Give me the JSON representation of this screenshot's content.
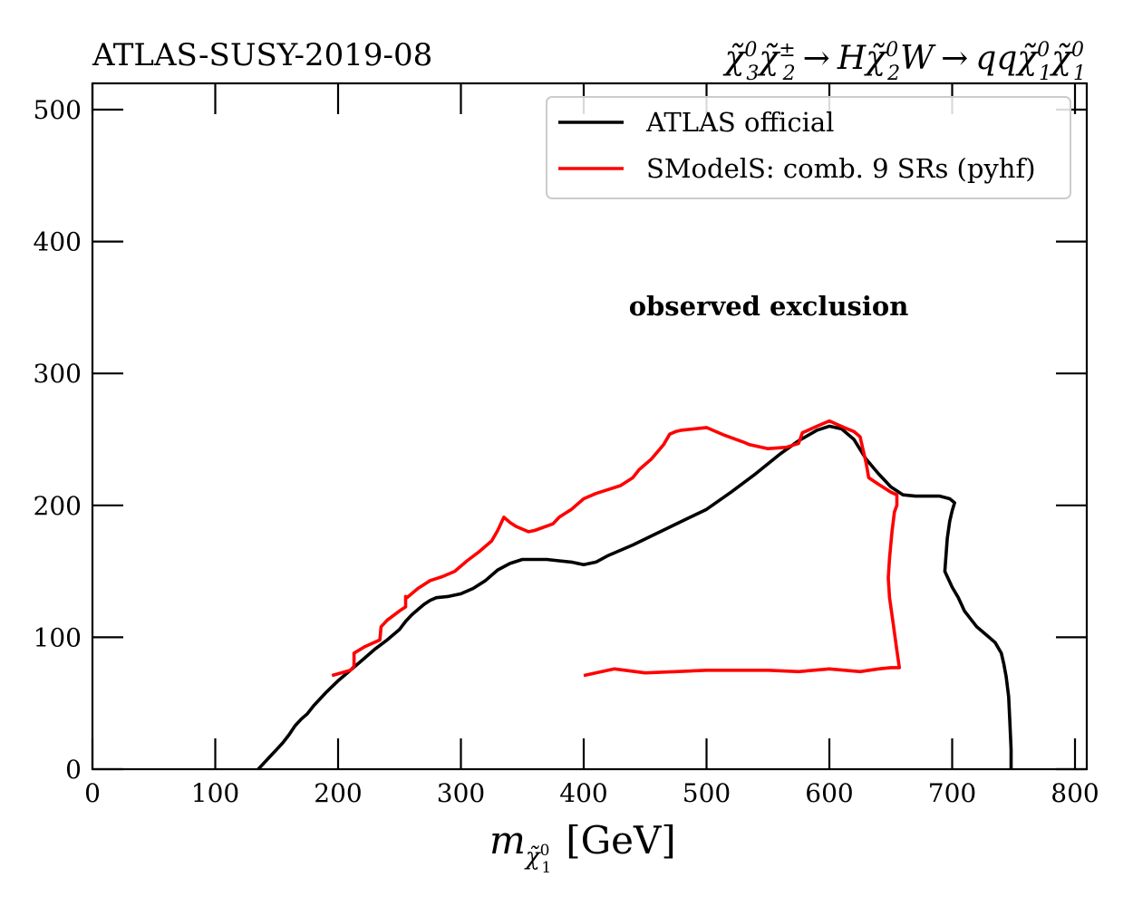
{
  "header": {
    "left_title": "ATLAS-SUSY-2019-08",
    "process": {
      "chi": "χ̃",
      "p1_sup": "0",
      "p1_sub": "3",
      "p2_sup": "±",
      "p2_sub": "2",
      "arrow": "→",
      "h": "H",
      "p3_sup": "0",
      "p3_sub": "2",
      "w": "W",
      "qq": "qq",
      "p4_sup": "0",
      "p4_sub": "1",
      "p5_sup": "0",
      "p5_sub": "1"
    }
  },
  "annotation": "observed exclusion",
  "legend": {
    "entries": [
      {
        "label": "ATLAS official",
        "color": "#000000"
      },
      {
        "label": "SModelS: comb. 9 SRs (pyhf)",
        "color": "#ff0000"
      }
    ]
  },
  "axes": {
    "xlabel_m": "m",
    "xlabel_chi": "χ̃",
    "xlabel_sup": "0",
    "xlabel_sub": "1",
    "xlabel_unit": "[GeV]"
  },
  "chart_data": {
    "type": "line",
    "title": "ATLAS-SUSY-2019-08",
    "xlabel": "m_χ̃1^0 [GeV]",
    "ylabel": "",
    "xlim": [
      0,
      810
    ],
    "ylim": [
      0,
      520
    ],
    "xticks": [
      0,
      100,
      200,
      300,
      400,
      500,
      600,
      700,
      800
    ],
    "yticks": [
      0,
      100,
      200,
      300,
      400,
      500
    ],
    "grid": false,
    "legend_position": "top-right",
    "series": [
      {
        "name": "ATLAS official",
        "color": "#000000",
        "points": [
          [
            135,
            0
          ],
          [
            140,
            5
          ],
          [
            145,
            10
          ],
          [
            150,
            15
          ],
          [
            155,
            20
          ],
          [
            160,
            26
          ],
          [
            165,
            33
          ],
          [
            170,
            38
          ],
          [
            175,
            42
          ],
          [
            180,
            48
          ],
          [
            190,
            58
          ],
          [
            200,
            67
          ],
          [
            210,
            75
          ],
          [
            220,
            83
          ],
          [
            230,
            91
          ],
          [
            240,
            98
          ],
          [
            250,
            106
          ],
          [
            255,
            112
          ],
          [
            260,
            117
          ],
          [
            265,
            121
          ],
          [
            270,
            125
          ],
          [
            275,
            128
          ],
          [
            280,
            130
          ],
          [
            290,
            131
          ],
          [
            300,
            133
          ],
          [
            310,
            137
          ],
          [
            320,
            143
          ],
          [
            330,
            151
          ],
          [
            340,
            156
          ],
          [
            350,
            159
          ],
          [
            360,
            159
          ],
          [
            370,
            159
          ],
          [
            380,
            158
          ],
          [
            390,
            157
          ],
          [
            400,
            155
          ],
          [
            410,
            157
          ],
          [
            420,
            162
          ],
          [
            440,
            170
          ],
          [
            460,
            179
          ],
          [
            480,
            188
          ],
          [
            500,
            197
          ],
          [
            520,
            210
          ],
          [
            540,
            224
          ],
          [
            560,
            239
          ],
          [
            575,
            249
          ],
          [
            590,
            257
          ],
          [
            600,
            260
          ],
          [
            610,
            258
          ],
          [
            620,
            250
          ],
          [
            630,
            235
          ],
          [
            640,
            224
          ],
          [
            650,
            214
          ],
          [
            660,
            208
          ],
          [
            670,
            207
          ],
          [
            680,
            207
          ],
          [
            690,
            207
          ],
          [
            698,
            205
          ],
          [
            702,
            202
          ],
          [
            700,
            196
          ],
          [
            698,
            188
          ],
          [
            696,
            175
          ],
          [
            694,
            150
          ],
          [
            700,
            138
          ],
          [
            705,
            130
          ],
          [
            710,
            120
          ],
          [
            720,
            108
          ],
          [
            730,
            100
          ],
          [
            735,
            96
          ],
          [
            740,
            88
          ],
          [
            742,
            80
          ],
          [
            744,
            70
          ],
          [
            746,
            55
          ],
          [
            747,
            35
          ],
          [
            748,
            15
          ],
          [
            748,
            0
          ]
        ]
      },
      {
        "name": "SModelS: comb. 9 SRs (pyhf)",
        "color": "#ff0000",
        "points": [
          [
            195,
            71
          ],
          [
            210,
            75
          ],
          [
            213,
            78
          ],
          [
            213,
            88
          ],
          [
            222,
            93
          ],
          [
            234,
            98
          ],
          [
            235,
            108
          ],
          [
            240,
            113
          ],
          [
            250,
            120
          ],
          [
            255,
            123
          ],
          [
            255,
            131
          ],
          [
            256,
            130
          ],
          [
            265,
            137
          ],
          [
            275,
            143
          ],
          [
            285,
            146
          ],
          [
            295,
            150
          ],
          [
            305,
            158
          ],
          [
            315,
            165
          ],
          [
            325,
            173
          ],
          [
            330,
            181
          ],
          [
            335,
            191
          ],
          [
            340,
            187
          ],
          [
            345,
            184
          ],
          [
            355,
            180
          ],
          [
            360,
            181
          ],
          [
            375,
            186
          ],
          [
            380,
            191
          ],
          [
            385,
            194
          ],
          [
            390,
            197
          ],
          [
            400,
            205
          ],
          [
            410,
            209
          ],
          [
            420,
            212
          ],
          [
            430,
            215
          ],
          [
            440,
            221
          ],
          [
            445,
            227
          ],
          [
            455,
            235
          ],
          [
            465,
            246
          ],
          [
            470,
            254
          ],
          [
            475,
            256
          ],
          [
            480,
            257
          ],
          [
            500,
            259
          ],
          [
            515,
            253
          ],
          [
            530,
            248
          ],
          [
            535,
            246
          ],
          [
            550,
            243
          ],
          [
            565,
            244
          ],
          [
            575,
            247
          ],
          [
            578,
            255
          ],
          [
            590,
            260
          ],
          [
            600,
            264
          ],
          [
            612,
            259
          ],
          [
            620,
            256
          ],
          [
            625,
            252
          ],
          [
            630,
            232
          ],
          [
            632,
            221
          ],
          [
            640,
            216
          ],
          [
            650,
            210
          ],
          [
            655,
            208
          ],
          [
            655,
            200
          ],
          [
            653,
            195
          ],
          [
            651,
            180
          ],
          [
            649,
            160
          ],
          [
            648,
            145
          ],
          [
            649,
            130
          ],
          [
            652,
            110
          ],
          [
            655,
            90
          ],
          [
            657,
            77
          ],
          [
            650,
            77
          ],
          [
            640,
            76
          ],
          [
            625,
            74
          ],
          [
            600,
            76
          ],
          [
            575,
            74
          ],
          [
            550,
            75
          ],
          [
            525,
            75
          ],
          [
            500,
            75
          ],
          [
            475,
            74
          ],
          [
            450,
            73
          ],
          [
            425,
            76
          ],
          [
            400,
            71
          ]
        ]
      }
    ]
  }
}
